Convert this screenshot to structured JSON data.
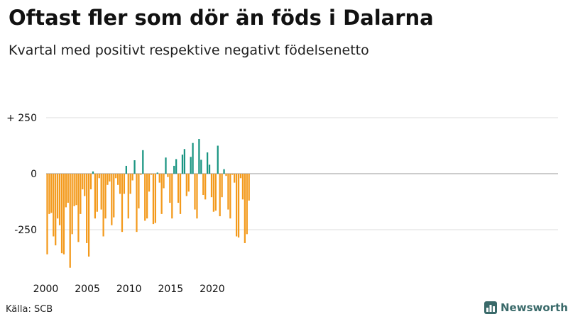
{
  "title": "Oftast fler som dör än föds i Dalarna",
  "subtitle": "Kvartal med positivt respektive negativt födelsenetto",
  "source": "Källa: SCB",
  "brand": {
    "name": "Newsworthy",
    "icon": "newsworthy-bar-chart-logo"
  },
  "colors": {
    "positive": "#1a9582",
    "negative": "#f39a1c",
    "grid": "#dddddd",
    "axis": "#999999"
  },
  "chart_data": {
    "type": "bar",
    "title": "Oftast fler som dör än föds i Dalarna",
    "subtitle": "Kvartal med positivt respektive negativt födelsenetto",
    "xlabel": "",
    "ylabel": "",
    "x_start": 2000,
    "periods_per_year": 4,
    "x_ticks": [
      2000,
      2005,
      2010,
      2015,
      2020
    ],
    "x_tick_labels": [
      "2000",
      "2005",
      "2010",
      "2015",
      "2020"
    ],
    "y_ticks": [
      250,
      0,
      -250
    ],
    "y_tick_labels": [
      "+ 250",
      "0",
      "-250"
    ],
    "ylim": [
      -430,
      250
    ],
    "grid": true,
    "values": [
      -360,
      -180,
      -175,
      -280,
      -320,
      -200,
      -230,
      -355,
      -360,
      -150,
      -130,
      -420,
      -270,
      -145,
      -140,
      -305,
      -180,
      -70,
      -100,
      -310,
      -370,
      -70,
      10,
      -200,
      -170,
      -20,
      -160,
      -280,
      -200,
      -50,
      -35,
      -230,
      -195,
      -20,
      -50,
      -90,
      -260,
      -90,
      35,
      -200,
      -90,
      -30,
      60,
      -260,
      -155,
      -5,
      105,
      -210,
      -200,
      -80,
      -5,
      -225,
      -220,
      5,
      -40,
      -180,
      -65,
      72,
      -15,
      -130,
      -200,
      35,
      65,
      -130,
      -180,
      85,
      110,
      -100,
      -80,
      75,
      137,
      -160,
      -200,
      155,
      62,
      -95,
      -115,
      95,
      40,
      -105,
      -170,
      -165,
      125,
      -190,
      -105,
      20,
      -10,
      -160,
      -200,
      -5,
      -40,
      -280,
      -285,
      -20,
      -115,
      -310,
      -270,
      -120
    ]
  }
}
